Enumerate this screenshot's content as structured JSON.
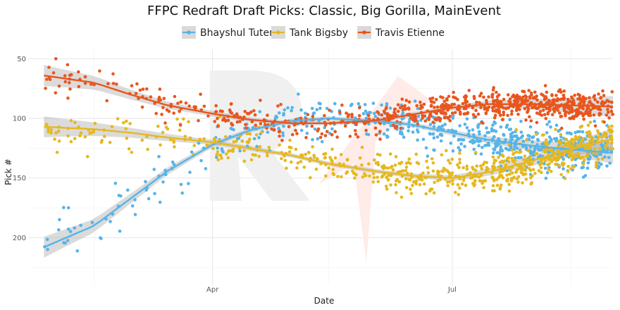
{
  "chart_data": {
    "type": "scatter",
    "title": "FFPC Redraft Draft Picks: Classic, Big Gorilla, MainEvent",
    "xlabel": "Date",
    "ylabel": "Pick #",
    "x_range": [
      "2025-01-21",
      "2025-08-31"
    ],
    "ylim": [
      240,
      42
    ],
    "y_reversed": true,
    "y_ticks": [
      50,
      100,
      150,
      200
    ],
    "x_tick_labels": [
      {
        "date": "2025-04-01",
        "label": "Apr"
      },
      {
        "date": "2025-07-01",
        "label": "Jul"
      }
    ],
    "x_minor_dates": [
      "2025-02-15",
      "2025-05-15",
      "2025-08-15"
    ],
    "legend_position": "top",
    "grid": true,
    "series": [
      {
        "name": "Bhayshul Tuten",
        "color": "#56b4e9",
        "trend": [
          [
            "2025-01-27",
            208
          ],
          [
            "2025-02-15",
            190
          ],
          [
            "2025-03-01",
            167
          ],
          [
            "2025-03-15",
            144
          ],
          [
            "2025-04-01",
            122
          ],
          [
            "2025-04-15",
            110
          ],
          [
            "2025-05-01",
            102
          ],
          [
            "2025-05-15",
            100
          ],
          [
            "2025-06-01",
            102
          ],
          [
            "2025-06-15",
            105
          ],
          [
            "2025-07-01",
            112
          ],
          [
            "2025-07-15",
            118
          ],
          [
            "2025-08-01",
            123
          ],
          [
            "2025-08-15",
            126
          ],
          [
            "2025-08-31",
            129
          ]
        ],
        "scatter_segments": [
          {
            "from": "2025-01-27",
            "to": "2025-03-31",
            "n": 55,
            "spread": 22
          },
          {
            "from": "2025-04-01",
            "to": "2025-05-31",
            "n": 110,
            "spread": 14
          },
          {
            "from": "2025-06-01",
            "to": "2025-07-15",
            "n": 160,
            "spread": 15
          },
          {
            "from": "2025-07-16",
            "to": "2025-08-31",
            "n": 300,
            "spread": 17
          }
        ]
      },
      {
        "name": "Tank Bigsby",
        "color": "#e6b820",
        "trend": [
          [
            "2025-01-27",
            107
          ],
          [
            "2025-02-15",
            109
          ],
          [
            "2025-03-01",
            112
          ],
          [
            "2025-03-15",
            116
          ],
          [
            "2025-04-01",
            120
          ],
          [
            "2025-04-15",
            125
          ],
          [
            "2025-05-01",
            131
          ],
          [
            "2025-05-15",
            138
          ],
          [
            "2025-06-01",
            144
          ],
          [
            "2025-06-15",
            148
          ],
          [
            "2025-07-01",
            150
          ],
          [
            "2025-07-15",
            145
          ],
          [
            "2025-08-01",
            135
          ],
          [
            "2025-08-15",
            126
          ],
          [
            "2025-08-31",
            117
          ]
        ],
        "scatter_segments": [
          {
            "from": "2025-01-27",
            "to": "2025-03-31",
            "n": 70,
            "spread": 14
          },
          {
            "from": "2025-04-01",
            "to": "2025-05-31",
            "n": 120,
            "spread": 13
          },
          {
            "from": "2025-06-01",
            "to": "2025-07-15",
            "n": 180,
            "spread": 13
          },
          {
            "from": "2025-07-16",
            "to": "2025-08-31",
            "n": 320,
            "spread": 14
          }
        ]
      },
      {
        "name": "Travis Etienne",
        "color": "#e8561e",
        "trend": [
          [
            "2025-01-27",
            64
          ],
          [
            "2025-02-15",
            70
          ],
          [
            "2025-03-01",
            80
          ],
          [
            "2025-03-15",
            89
          ],
          [
            "2025-04-01",
            96
          ],
          [
            "2025-04-15",
            101
          ],
          [
            "2025-05-01",
            104
          ],
          [
            "2025-05-15",
            104
          ],
          [
            "2025-06-01",
            102
          ],
          [
            "2025-06-15",
            97
          ],
          [
            "2025-07-01",
            91
          ],
          [
            "2025-07-15",
            88
          ],
          [
            "2025-08-01",
            88
          ],
          [
            "2025-08-15",
            89
          ],
          [
            "2025-08-31",
            90
          ]
        ],
        "scatter_segments": [
          {
            "from": "2025-01-27",
            "to": "2025-03-31",
            "n": 75,
            "spread": 12
          },
          {
            "from": "2025-04-01",
            "to": "2025-05-31",
            "n": 130,
            "spread": 10
          },
          {
            "from": "2025-06-01",
            "to": "2025-07-15",
            "n": 200,
            "spread": 10
          },
          {
            "from": "2025-07-16",
            "to": "2025-08-31",
            "n": 360,
            "spread": 10
          }
        ]
      }
    ]
  }
}
